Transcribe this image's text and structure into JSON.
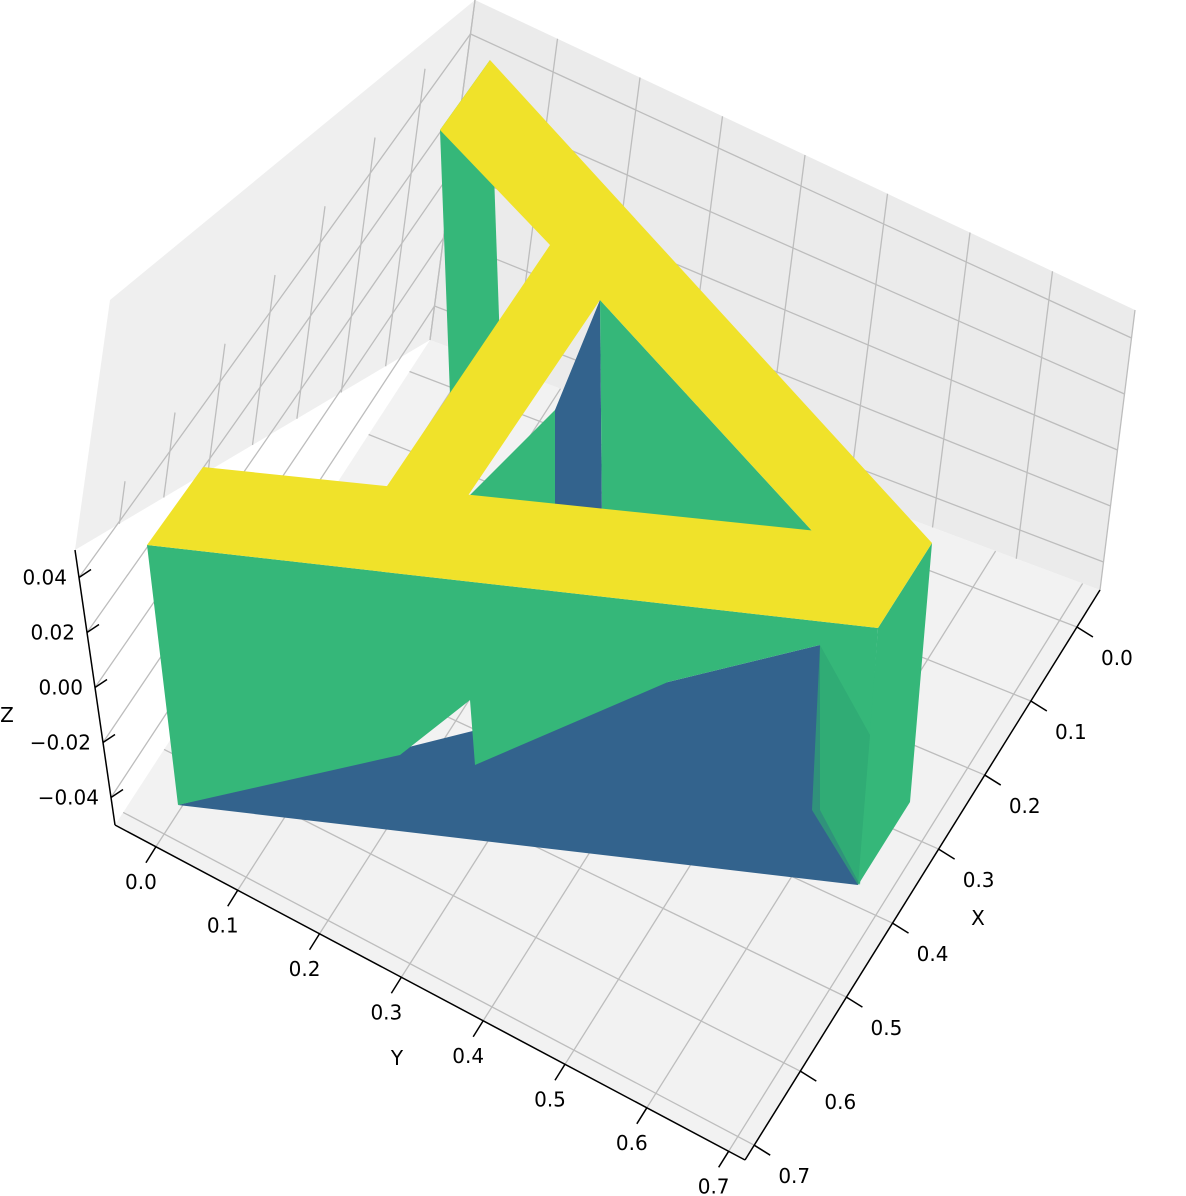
{
  "chart_data": {
    "type": "surface3d",
    "title": "",
    "xlabel": "X",
    "ylabel": "Y",
    "zlabel": "Z",
    "x_ticks": [
      "0.0",
      "0.1",
      "0.2",
      "0.3",
      "0.4",
      "0.5",
      "0.6",
      "0.7"
    ],
    "y_ticks": [
      "0.0",
      "0.1",
      "0.2",
      "0.3",
      "0.4",
      "0.5",
      "0.6",
      "0.7"
    ],
    "z_ticks": [
      "0.04",
      "0.02",
      "0.00",
      "−0.02",
      "−0.04"
    ],
    "xlim": [
      -0.05,
      0.72
    ],
    "ylim": [
      -0.05,
      0.72
    ],
    "zlim": [
      -0.05,
      0.05
    ],
    "shape": "triangular frame (Penrose-style) extruded from z = -0.05 to z = 0.05",
    "colormap": "viridis",
    "colors": {
      "top": "#f0e22a",
      "side": "#35b779",
      "bottom": "#33638d",
      "pane": "#f2f2f2",
      "grid": "#bdbdbd"
    },
    "grid": true,
    "legend": "none"
  }
}
